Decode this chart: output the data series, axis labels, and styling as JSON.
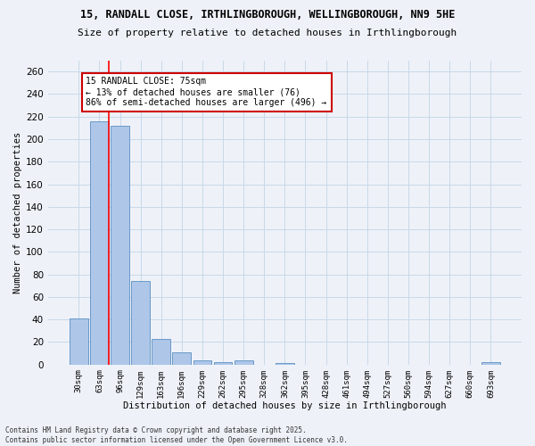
{
  "title_line1": "15, RANDALL CLOSE, IRTHLINGBOROUGH, WELLINGBOROUGH, NN9 5HE",
  "title_line2": "Size of property relative to detached houses in Irthlingborough",
  "xlabel": "Distribution of detached houses by size in Irthlingborough",
  "ylabel": "Number of detached properties",
  "footnote": "Contains HM Land Registry data © Crown copyright and database right 2025.\nContains public sector information licensed under the Open Government Licence v3.0.",
  "categories": [
    "30sqm",
    "63sqm",
    "96sqm",
    "129sqm",
    "163sqm",
    "196sqm",
    "229sqm",
    "262sqm",
    "295sqm",
    "328sqm",
    "362sqm",
    "395sqm",
    "428sqm",
    "461sqm",
    "494sqm",
    "527sqm",
    "560sqm",
    "594sqm",
    "627sqm",
    "660sqm",
    "693sqm"
  ],
  "values": [
    41,
    216,
    212,
    74,
    23,
    11,
    4,
    2,
    4,
    0,
    1,
    0,
    0,
    0,
    0,
    0,
    0,
    0,
    0,
    0,
    2
  ],
  "bar_color": "#aec6e8",
  "bar_edge_color": "#5a8fc2",
  "grid_color": "#c8d8e8",
  "background_color": "#eef2f8",
  "red_line_index": 1.45,
  "annotation_text": "15 RANDALL CLOSE: 75sqm\n← 13% of detached houses are smaller (76)\n86% of semi-detached houses are larger (496) →",
  "annotation_box_color": "#ffffff",
  "annotation_box_edge_color": "#cc0000",
  "ylim": [
    0,
    270
  ],
  "yticks": [
    0,
    20,
    40,
    60,
    80,
    100,
    120,
    140,
    160,
    180,
    200,
    220,
    240,
    260
  ]
}
